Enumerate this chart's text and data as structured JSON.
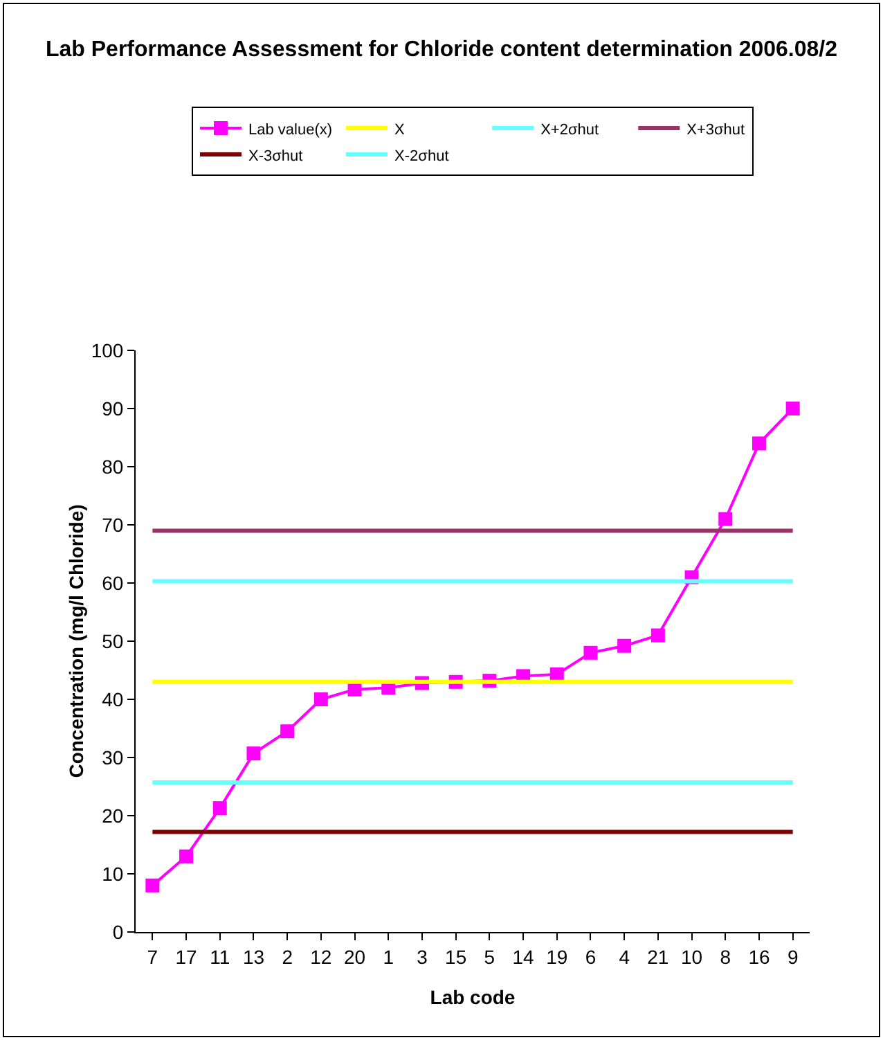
{
  "chart_data": {
    "type": "line",
    "title": "Lab Performance Assessment for Chloride content determination 2006.08/2",
    "xlabel": "Lab code",
    "ylabel": "Concentration (mg/l Chloride)",
    "categories": [
      "7",
      "17",
      "11",
      "13",
      "2",
      "12",
      "20",
      "1",
      "3",
      "15",
      "5",
      "14",
      "19",
      "6",
      "4",
      "21",
      "10",
      "8",
      "16",
      "9"
    ],
    "series": [
      {
        "name": "Lab value(x)",
        "color": "#ff00ff",
        "values": [
          8,
          13,
          21.3,
          30.7,
          34.5,
          40,
          41.7,
          42,
          42.8,
          43,
          43.2,
          44,
          44.3,
          48,
          49.2,
          51,
          61,
          71,
          84,
          90
        ]
      }
    ],
    "ref_lines": [
      {
        "axis": "y",
        "value": 43,
        "label": "X",
        "color": "#ffff00"
      },
      {
        "axis": "y",
        "value": 60.3,
        "label": "X+2σhut",
        "color": "#66ffff"
      },
      {
        "axis": "y",
        "value": 69,
        "label": "X+3σhut",
        "color": "#993366"
      },
      {
        "axis": "y",
        "value": 17.2,
        "label": "X-3σhut",
        "color": "#800000"
      },
      {
        "axis": "y",
        "value": 25.7,
        "label": "X-2σhut",
        "color": "#66ffff"
      }
    ],
    "ylim": [
      0,
      100
    ],
    "yticks": [
      0,
      10,
      20,
      30,
      40,
      50,
      60,
      70,
      80,
      90,
      100
    ],
    "grid": false,
    "legend": "top",
    "marker": "square",
    "line_style": "solid"
  }
}
